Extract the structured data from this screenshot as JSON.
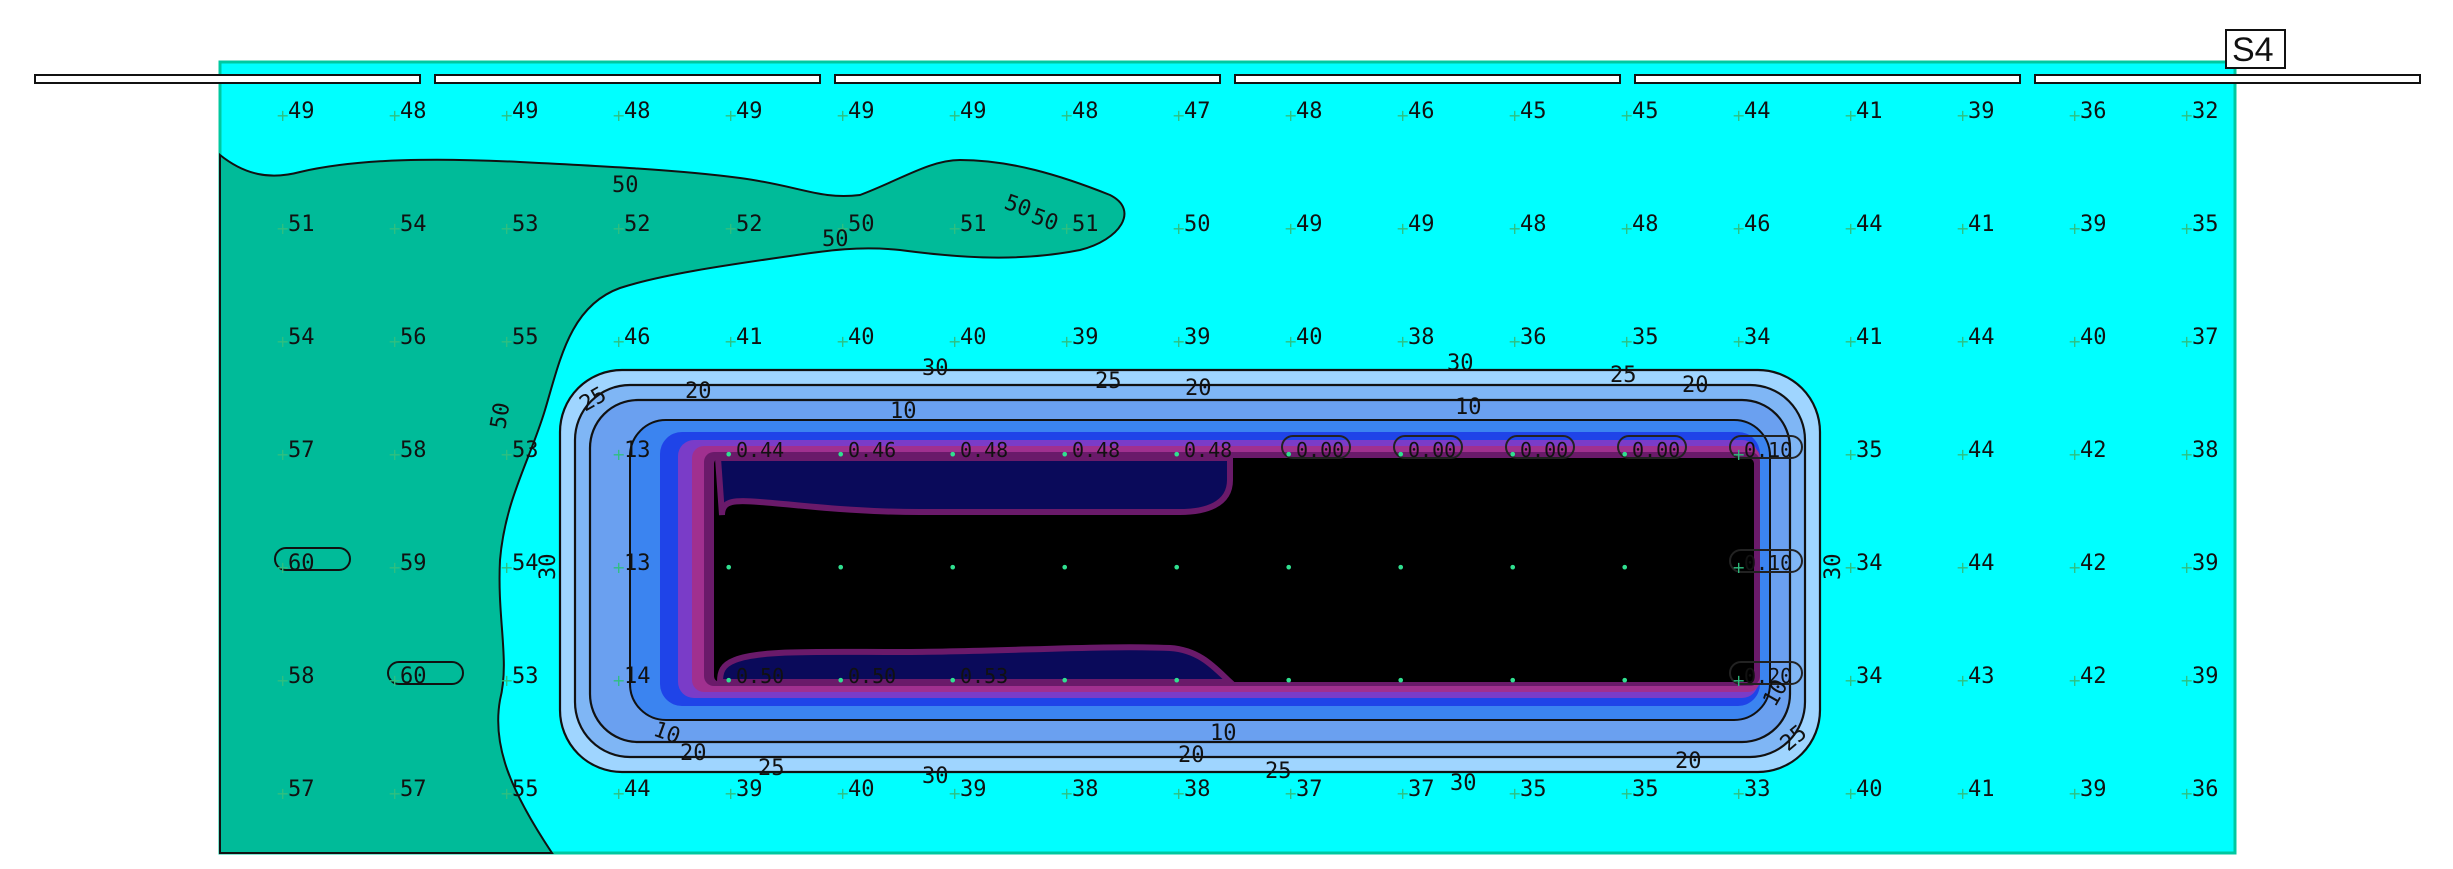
{
  "sheet_tag": "S4",
  "colors": {
    "outside": "#00ffff",
    "zone_50": "#00bb99",
    "band_30": "#6fa8f0",
    "band_20": "#3b84f0",
    "band_10": "#1f44e8",
    "band_5": "#7a3cc8",
    "band_2": "#a0308f",
    "band_1": "#6a1a6a",
    "band_0": "#000000",
    "dark_band": "#0a0a4a",
    "marker": "#2fbf7f",
    "dark_marker": "#30e090"
  },
  "grid": {
    "rows": [
      [
        "49",
        "48",
        "49",
        "48",
        "49",
        "49",
        "49",
        "48",
        "47",
        "48",
        "46",
        "45",
        "45",
        "44",
        "41",
        "39",
        "36",
        "32"
      ],
      [
        "51",
        "54",
        "53",
        "52",
        "52",
        "50",
        "51",
        "51",
        "50",
        "49",
        "49",
        "48",
        "48",
        "46",
        "44",
        "41",
        "39",
        "35"
      ],
      [
        "54",
        "56",
        "55",
        "46",
        "41",
        "40",
        "40",
        "39",
        "39",
        "40",
        "38",
        "36",
        "35",
        "34",
        "41",
        "44",
        "40",
        "37"
      ],
      [
        "57",
        "58",
        "53",
        "13",
        "0.44",
        "0.46",
        "0.48",
        "0.48",
        "0.48",
        "0.00",
        "0.00",
        "0.00",
        "0.00",
        "0.10",
        "35",
        "44",
        "42",
        "38"
      ],
      [
        "60",
        "59",
        "54",
        "13",
        "",
        "",
        "",
        "",
        "",
        "",
        "",
        "",
        "",
        "0.10",
        "34",
        "44",
        "42",
        "39"
      ],
      [
        "58",
        "60",
        "53",
        "14",
        "0.50",
        "0.50",
        "0.53",
        "",
        "",
        "",
        "",
        "",
        "",
        "0.20",
        "34",
        "43",
        "42",
        "39"
      ],
      [
        "57",
        "57",
        "55",
        "44",
        "39",
        "40",
        "39",
        "38",
        "38",
        "37",
        "37",
        "35",
        "35",
        "33",
        "40",
        "41",
        "39",
        "36"
      ]
    ]
  },
  "contour_labels": [
    "50",
    "50",
    "50",
    "50",
    "50",
    "30",
    "30",
    "30",
    "30",
    "30",
    "30",
    "25",
    "25",
    "25",
    "25",
    "25",
    "25",
    "20",
    "20",
    "20",
    "20",
    "20",
    "20",
    "10",
    "10",
    "10",
    "10",
    "10"
  ]
}
